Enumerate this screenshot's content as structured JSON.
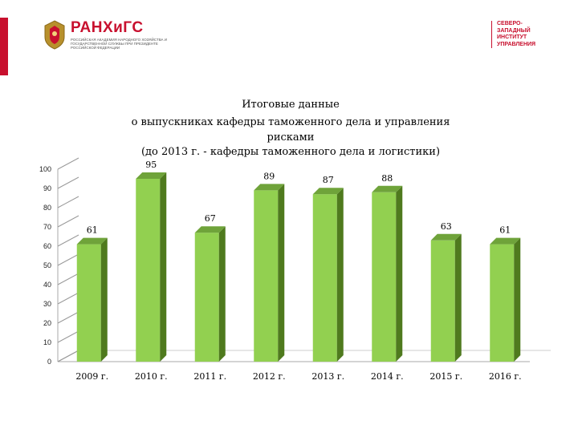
{
  "header": {
    "logo_name": "РАНХиГС",
    "logo_sub": "Российская академия народного хозяйства и государственной службы при Президенте Российской Федерации",
    "institute_lines": [
      "СЕВЕРО-",
      "ЗАПАДНЫЙ",
      "ИНСТИТУТ",
      "УПРАВЛЕНИЯ"
    ],
    "accent_color": "#c8102e"
  },
  "chart_data": {
    "type": "bar",
    "title_lines": [
      "Итоговые данные",
      "о выпускниках кафедры таможенного дела и управления",
      "рисками",
      "(до 2013 г. - кафедры таможенного дела и логистики)"
    ],
    "categories": [
      "2009 г.",
      "2010 г.",
      "2011 г.",
      "2012 г.",
      "2013 г.",
      "2014 г.",
      "2015 г.",
      "2016 г."
    ],
    "values": [
      61,
      95,
      67,
      89,
      87,
      88,
      63,
      61
    ],
    "data_labels": [
      "61",
      "95",
      "67",
      "89",
      "87",
      "88",
      "63",
      "61"
    ],
    "ylim": [
      0,
      100
    ],
    "yticks": [
      0,
      10,
      20,
      30,
      40,
      50,
      60,
      70,
      80,
      90,
      100
    ],
    "xlabel": "",
    "ylabel": "",
    "bar_color": "#92d050",
    "grid": false,
    "legend": "none"
  }
}
